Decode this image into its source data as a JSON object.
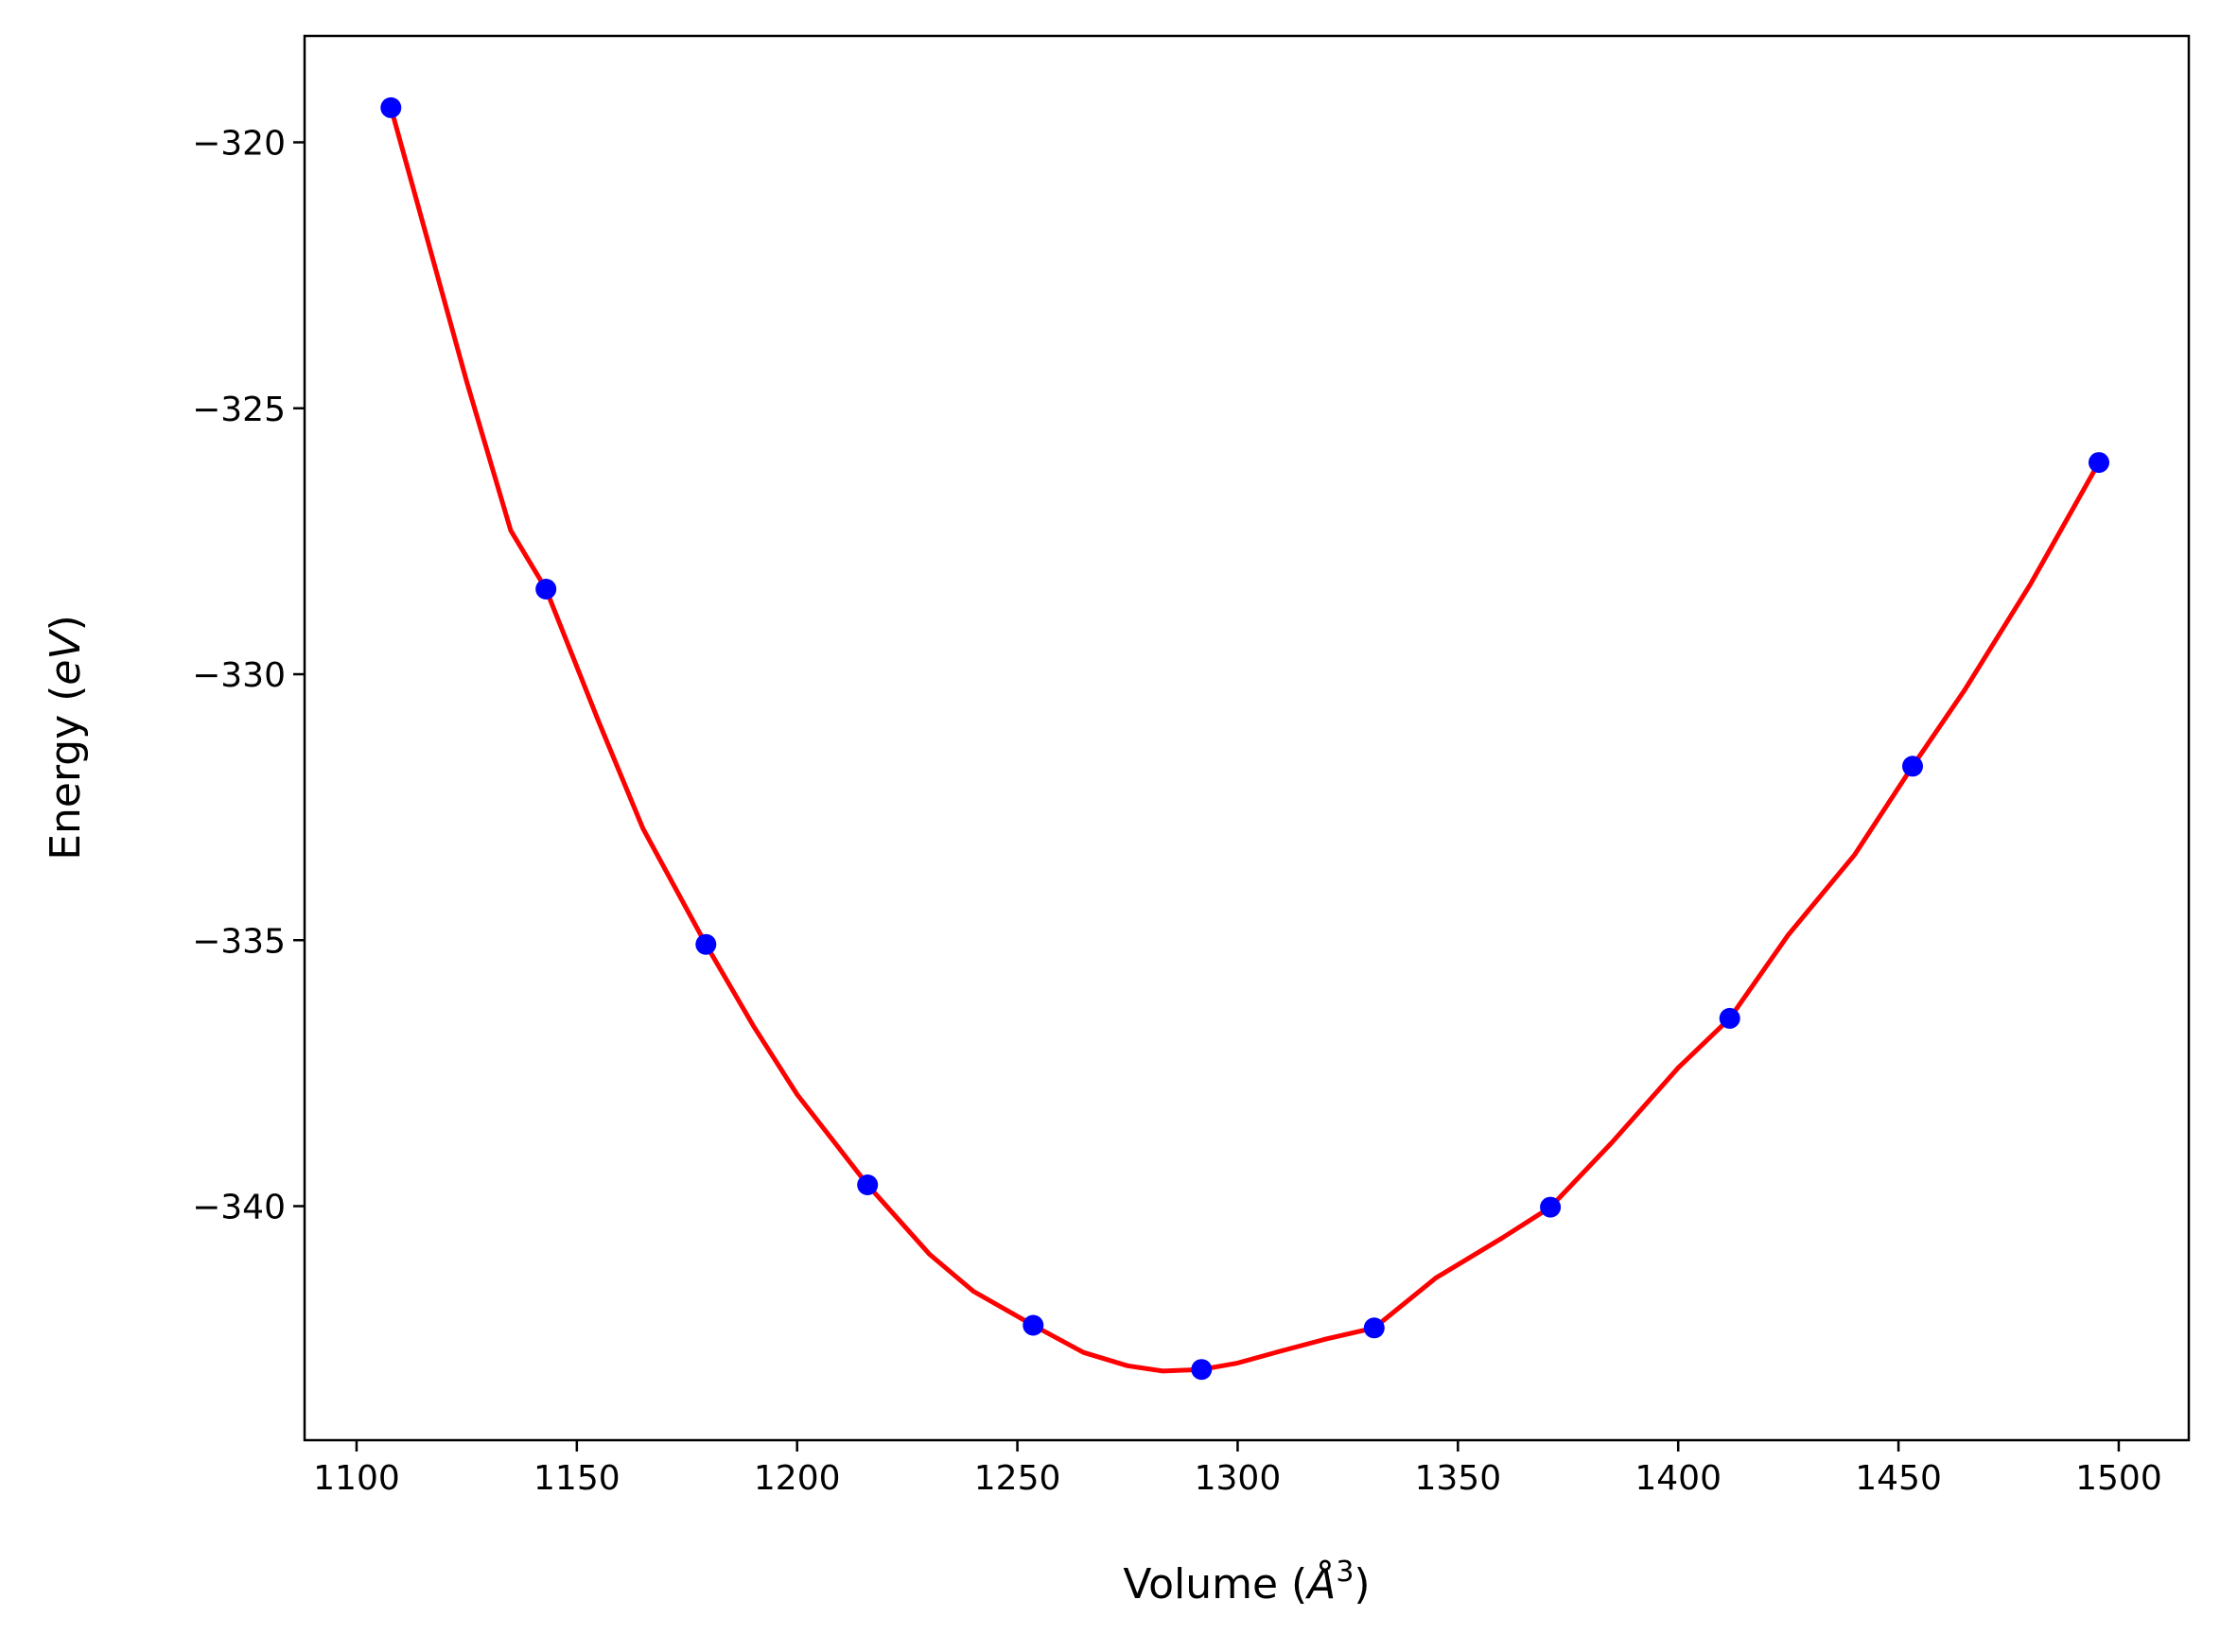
{
  "chart_data": {
    "type": "scatter",
    "title": "",
    "xlabel": "Volume (",
    "xlabel_unit_symbol": "Å",
    "xlabel_unit_exponent": "3",
    "xlabel_close": ")",
    "ylabel": "Energy (",
    "ylabel_unit": "eV",
    "ylabel_close": ")",
    "xlim": [
      1088.2,
      1515.9
    ],
    "ylim": [
      -344.4,
      -318.0
    ],
    "xticks": [
      1100,
      1150,
      1200,
      1250,
      1300,
      1350,
      1400,
      1450,
      1500
    ],
    "xtick_labels": [
      "1100",
      "1150",
      "1200",
      "1250",
      "1300",
      "1350",
      "1400",
      "1450",
      "1500"
    ],
    "yticks": [
      -320,
      -325,
      -330,
      -335,
      -340
    ],
    "ytick_labels": [
      "−320",
      "−325",
      "−330",
      "−335",
      "−340"
    ],
    "grid": false,
    "legend": "none",
    "series": [
      {
        "kind": "points",
        "color": "#0000ff",
        "x": [
          1107.8,
          1143.0,
          1179.3,
          1216.0,
          1253.6,
          1291.8,
          1331.0,
          1371.0,
          1411.7,
          1453.2,
          1495.5
        ],
        "y": [
          -319.35,
          -328.4,
          -335.08,
          -339.6,
          -342.24,
          -343.07,
          -342.29,
          -340.02,
          -336.47,
          -331.73,
          -326.02
        ]
      },
      {
        "kind": "fit-curve",
        "color": "#ff0000",
        "x": [
          1107.8,
          1115,
          1125,
          1135,
          1143.0,
          1155,
          1165,
          1179.3,
          1190,
          1200,
          1216.0,
          1230,
          1240,
          1253.6,
          1265,
          1275,
          1283,
          1291.8,
          1300,
          1310,
          1320,
          1331.0,
          1345,
          1360,
          1371.0,
          1385,
          1400,
          1411.7,
          1425,
          1440,
          1453.2,
          1465,
          1480,
          1495.5
        ],
        "y": [
          -319.35,
          -321.5,
          -324.5,
          -327.3,
          -328.4,
          -330.9,
          -332.9,
          -335.08,
          -336.6,
          -337.9,
          -339.6,
          -340.9,
          -341.6,
          -342.24,
          -342.75,
          -343.0,
          -343.1,
          -343.07,
          -342.95,
          -342.72,
          -342.5,
          -342.29,
          -341.35,
          -340.6,
          -340.02,
          -338.8,
          -337.4,
          -336.47,
          -334.9,
          -333.4,
          -331.73,
          -330.3,
          -328.3,
          -326.02
        ]
      }
    ]
  }
}
